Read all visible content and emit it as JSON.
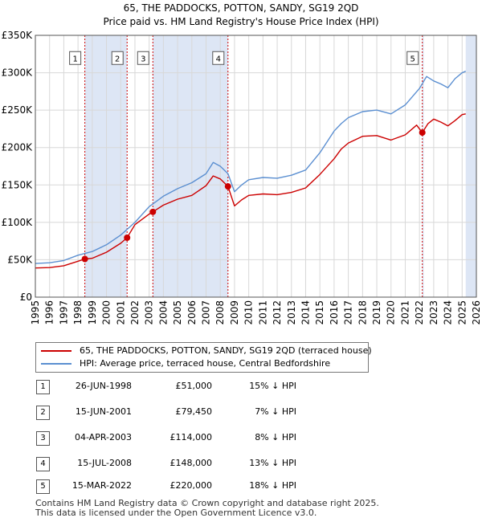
{
  "title_line1": "65, THE PADDOCKS, POTTON, SANDY, SG19 2QD",
  "title_line2": "Price paid vs. HM Land Registry's House Price Index (HPI)",
  "chart_data": {
    "type": "line",
    "x_range": [
      1995,
      2026
    ],
    "ylim": [
      0,
      350000
    ],
    "y_ticks": [
      0,
      50000,
      100000,
      150000,
      200000,
      250000,
      300000,
      350000
    ],
    "y_tick_labels": [
      "£0",
      "£50K",
      "£100K",
      "£150K",
      "£200K",
      "£250K",
      "£300K",
      "£350K"
    ],
    "x_ticks": [
      1995,
      1996,
      1997,
      1998,
      1999,
      2000,
      2001,
      2002,
      2003,
      2004,
      2005,
      2006,
      2007,
      2008,
      2009,
      2010,
      2011,
      2012,
      2013,
      2014,
      2015,
      2016,
      2017,
      2018,
      2019,
      2020,
      2021,
      2022,
      2023,
      2024,
      2025,
      2026
    ],
    "grid": true,
    "shaded_spans": [
      [
        1998.48,
        2001.45
      ],
      [
        2003.26,
        2008.54
      ],
      [
        2022.2,
        2022.3
      ],
      [
        2025.25,
        2026
      ]
    ],
    "series": [
      {
        "name": "65, THE PADDOCKS, POTTON, SANDY, SG19 2QD (terraced house)",
        "color": "#cc0000",
        "points": [
          [
            1995,
            39000
          ],
          [
            1996,
            39500
          ],
          [
            1997,
            42000
          ],
          [
            1998,
            48000
          ],
          [
            1998.48,
            51000
          ],
          [
            1999,
            52000
          ],
          [
            2000,
            60000
          ],
          [
            2001,
            72000
          ],
          [
            2001.45,
            79450
          ],
          [
            2002,
            97000
          ],
          [
            2003,
            111000
          ],
          [
            2003.26,
            114000
          ],
          [
            2004,
            123000
          ],
          [
            2005,
            131000
          ],
          [
            2006,
            136000
          ],
          [
            2007,
            149000
          ],
          [
            2007.5,
            162000
          ],
          [
            2008,
            158000
          ],
          [
            2008.54,
            148000
          ],
          [
            2009,
            122000
          ],
          [
            2009.5,
            130000
          ],
          [
            2010,
            136000
          ],
          [
            2011,
            138000
          ],
          [
            2012,
            137000
          ],
          [
            2013,
            140000
          ],
          [
            2014,
            146000
          ],
          [
            2015,
            164000
          ],
          [
            2016,
            185000
          ],
          [
            2016.5,
            198000
          ],
          [
            2017,
            206000
          ],
          [
            2018,
            215000
          ],
          [
            2019,
            216000
          ],
          [
            2020,
            210000
          ],
          [
            2021,
            217000
          ],
          [
            2021.8,
            230000
          ],
          [
            2022.2,
            220000
          ],
          [
            2022.6,
            232000
          ],
          [
            2023,
            238000
          ],
          [
            2023.5,
            234000
          ],
          [
            2024,
            229000
          ],
          [
            2024.5,
            236000
          ],
          [
            2025,
            244000
          ],
          [
            2025.25,
            245000
          ]
        ]
      },
      {
        "name": "HPI: Average price, terraced house, Central Bedfordshire",
        "color": "#5b8fd1",
        "points": [
          [
            1995,
            45000
          ],
          [
            1996,
            46000
          ],
          [
            1997,
            49000
          ],
          [
            1998,
            56000
          ],
          [
            1999,
            61000
          ],
          [
            2000,
            70000
          ],
          [
            2001,
            83000
          ],
          [
            2002,
            100000
          ],
          [
            2003,
            121000
          ],
          [
            2004,
            135000
          ],
          [
            2005,
            145000
          ],
          [
            2006,
            153000
          ],
          [
            2007,
            165000
          ],
          [
            2007.5,
            180000
          ],
          [
            2008,
            175000
          ],
          [
            2008.54,
            165000
          ],
          [
            2009,
            141000
          ],
          [
            2009.5,
            150000
          ],
          [
            2010,
            157000
          ],
          [
            2011,
            160000
          ],
          [
            2012,
            159000
          ],
          [
            2013,
            163000
          ],
          [
            2014,
            170000
          ],
          [
            2015,
            193000
          ],
          [
            2016,
            222000
          ],
          [
            2016.5,
            232000
          ],
          [
            2017,
            240000
          ],
          [
            2018,
            248000
          ],
          [
            2019,
            250000
          ],
          [
            2020,
            245000
          ],
          [
            2021,
            257000
          ],
          [
            2022,
            279000
          ],
          [
            2022.5,
            295000
          ],
          [
            2023,
            289000
          ],
          [
            2023.5,
            285000
          ],
          [
            2024,
            280000
          ],
          [
            2024.5,
            292000
          ],
          [
            2025,
            300000
          ],
          [
            2025.25,
            302000
          ]
        ]
      }
    ],
    "markers": [
      {
        "label": "1",
        "year": 1998.48,
        "value": 51000
      },
      {
        "label": "2",
        "year": 2001.45,
        "value": 79450
      },
      {
        "label": "3",
        "year": 2003.26,
        "value": 114000
      },
      {
        "label": "4",
        "year": 2008.54,
        "value": 148000
      },
      {
        "label": "5",
        "year": 2022.2,
        "value": 220000
      }
    ],
    "marker_label_value": 310000,
    "marker_color": "#cc0000",
    "shade_color": "#dde6f5"
  },
  "legend": [
    {
      "label": "65, THE PADDOCKS, POTTON, SANDY, SG19 2QD (terraced house)",
      "color": "#cc0000"
    },
    {
      "label": "HPI: Average price, terraced house, Central Bedfordshire",
      "color": "#5b8fd1"
    }
  ],
  "sales": [
    {
      "num": "1",
      "date": "26-JUN-1998",
      "price": "£51,000",
      "hpi": "15% ↓ HPI"
    },
    {
      "num": "2",
      "date": "15-JUN-2001",
      "price": "£79,450",
      "hpi": "7% ↓ HPI"
    },
    {
      "num": "3",
      "date": "04-APR-2003",
      "price": "£114,000",
      "hpi": "8% ↓ HPI"
    },
    {
      "num": "4",
      "date": "15-JUL-2008",
      "price": "£148,000",
      "hpi": "13% ↓ HPI"
    },
    {
      "num": "5",
      "date": "15-MAR-2022",
      "price": "£220,000",
      "hpi": "18% ↓ HPI"
    }
  ],
  "footer_line1": "Contains HM Land Registry data © Crown copyright and database right 2025.",
  "footer_line2": "This data is licensed under the Open Government Licence v3.0."
}
